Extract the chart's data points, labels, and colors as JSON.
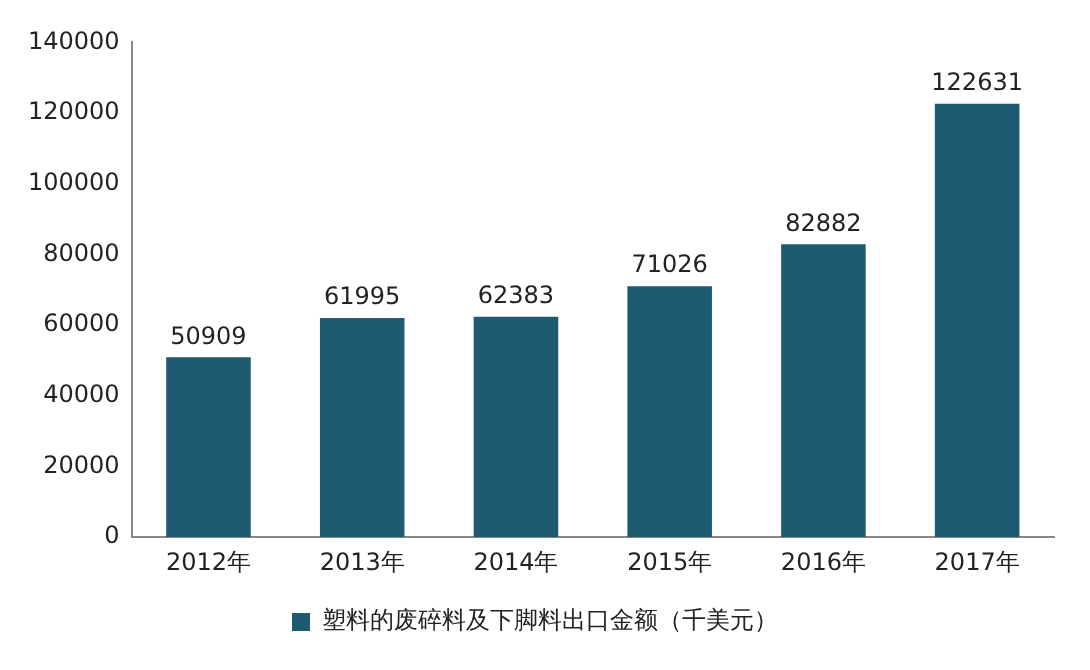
{
  "chart_data": {
    "type": "bar",
    "categories": [
      "2012年",
      "2013年",
      "2014年",
      "2015年",
      "2016年",
      "2017年"
    ],
    "series": [
      {
        "name": "塑料的废碎料及下脚料出口金额（千美元）",
        "color": "#1f5a73",
        "values": [
          50909,
          61995,
          62383,
          71026,
          82882,
          122631
        ]
      }
    ],
    "ylim": [
      0,
      140000
    ],
    "yticks": [
      0,
      20000,
      40000,
      60000,
      80000,
      100000,
      120000,
      140000
    ],
    "grid": false,
    "legend": "bottom",
    "data_labels": true
  }
}
